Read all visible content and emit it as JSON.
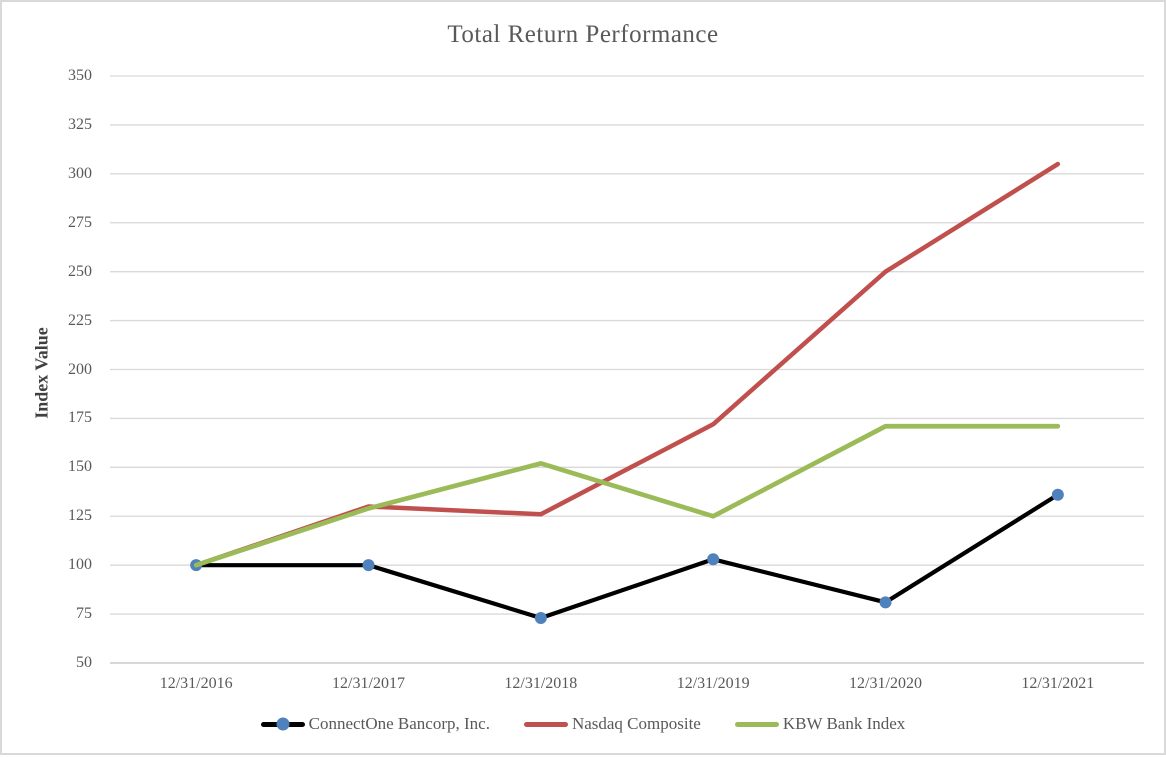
{
  "chart_data": {
    "type": "line",
    "title": "Total Return Performance",
    "xlabel": "",
    "ylabel": "Index Value",
    "ylim": [
      50,
      350
    ],
    "ytick_step": 25,
    "yticks": [
      350,
      325,
      300,
      275,
      250,
      225,
      200,
      175,
      150,
      125,
      100,
      75,
      50
    ],
    "categories": [
      "12/31/2016",
      "12/31/2017",
      "12/31/2018",
      "12/31/2019",
      "12/31/2020",
      "12/31/2021"
    ],
    "series": [
      {
        "name": "ConnectOne Bancorp, Inc.",
        "color": "#000000",
        "marker": "circle",
        "marker_color": "#4f81bd",
        "values": [
          100,
          100,
          73,
          103,
          81,
          136
        ]
      },
      {
        "name": "Nasdaq Composite",
        "color": "#c0504d",
        "marker": "none",
        "values": [
          100,
          130,
          126,
          172,
          250,
          305
        ]
      },
      {
        "name": "KBW Bank Index",
        "color": "#9bbb59",
        "marker": "none",
        "values": [
          100,
          129,
          152,
          125,
          171,
          171
        ]
      }
    ],
    "grid": true,
    "gridline_color": "#d9d9d9",
    "axisline_color": "#c0c0c0",
    "text_color": "#595959",
    "legend_position": "bottom"
  }
}
